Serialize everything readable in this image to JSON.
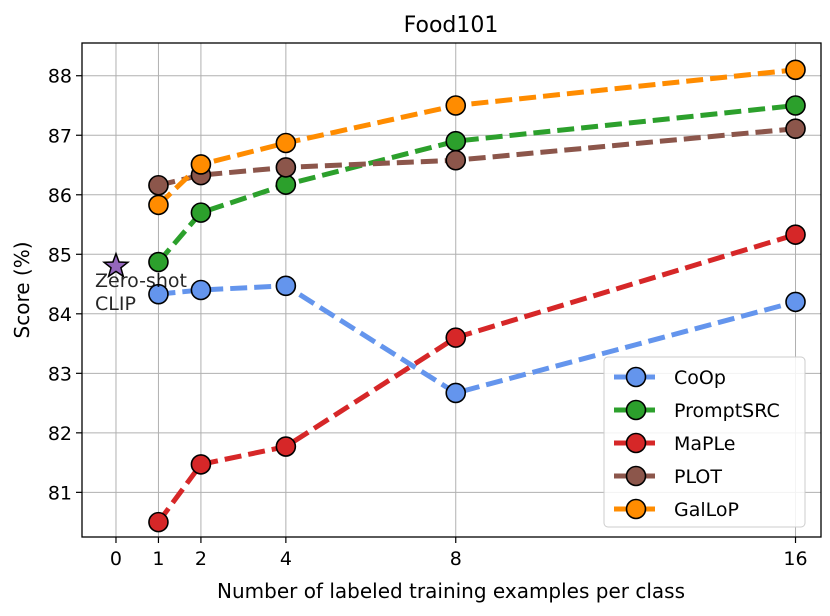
{
  "chart_data": {
    "type": "line",
    "title": "Food101",
    "xlabel": "Number of labeled training examples per class",
    "ylabel": "Score (%)",
    "x_ticks": [
      0,
      1,
      2,
      4,
      8,
      16
    ],
    "x_tick_labels": [
      "0",
      "1",
      "2",
      "4",
      "8",
      "16"
    ],
    "y_ticks": [
      81,
      82,
      83,
      84,
      85,
      86,
      87,
      88
    ],
    "y_tick_labels": [
      "81",
      "82",
      "83",
      "84",
      "85",
      "86",
      "87",
      "88"
    ],
    "xlim": [
      -0.8,
      16.6
    ],
    "ylim": [
      80.25,
      88.55
    ],
    "grid": true,
    "legend_position": "lower-right",
    "zero_shot": {
      "label_line1": "Zero-shot",
      "label_line2": "CLIP",
      "x": 0,
      "y": 84.8,
      "color": "#9467bd"
    },
    "series": [
      {
        "name": "CoOp",
        "color": "#6495ed",
        "x": [
          1,
          2,
          4,
          8,
          16
        ],
        "values": [
          84.33,
          84.4,
          84.47,
          82.67,
          84.2
        ]
      },
      {
        "name": "PromptSRC",
        "color": "#2ca02c",
        "x": [
          1,
          2,
          4,
          8,
          16
        ],
        "values": [
          84.87,
          85.7,
          86.17,
          86.9,
          87.5
        ]
      },
      {
        "name": "MaPLe",
        "color": "#d62728",
        "x": [
          1,
          2,
          4,
          8,
          16
        ],
        "values": [
          80.5,
          81.47,
          81.77,
          83.6,
          85.33
        ]
      },
      {
        "name": "PLOT",
        "color": "#8c564b",
        "x": [
          1,
          2,
          4,
          8,
          16
        ],
        "values": [
          86.16,
          86.33,
          86.46,
          86.58,
          87.11
        ]
      },
      {
        "name": "GalLoP",
        "color": "#ff8c00",
        "x": [
          1,
          2,
          4,
          8,
          16
        ],
        "values": [
          85.83,
          86.51,
          86.87,
          87.5,
          88.1
        ]
      }
    ]
  }
}
